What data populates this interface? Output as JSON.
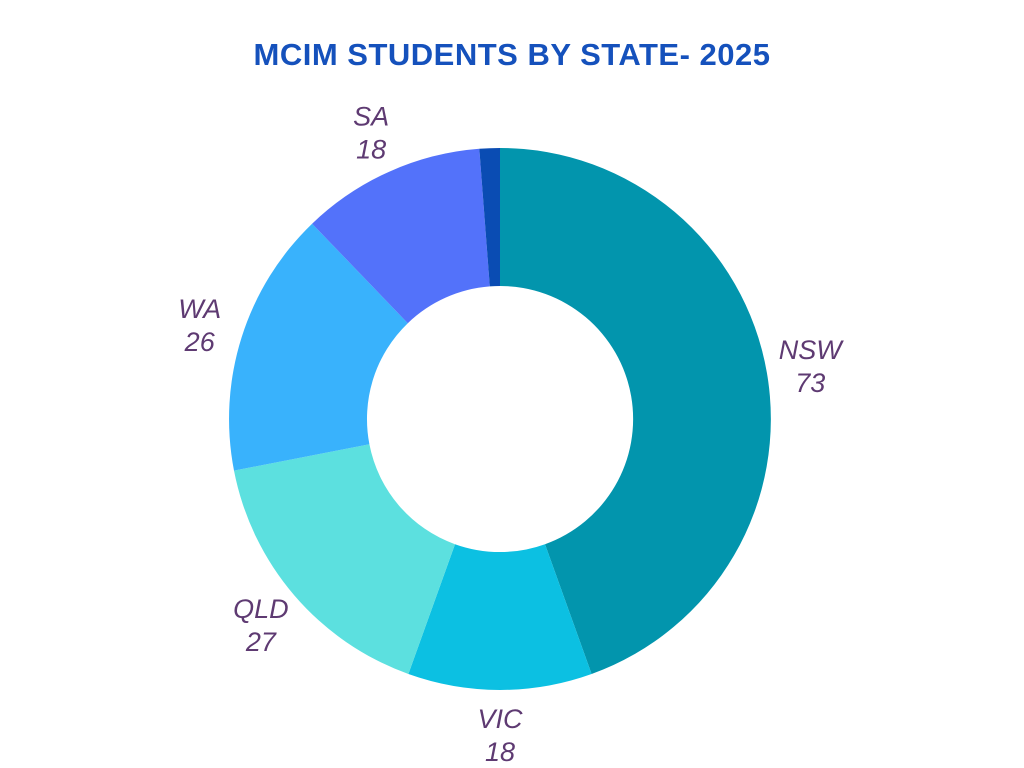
{
  "page": {
    "background_color": "#FFFFFF"
  },
  "title": {
    "text": "MCIM STUDENTS BY STATE- 2025",
    "color": "#1551BC"
  },
  "chart_data": {
    "type": "pie",
    "subtype": "donut",
    "title": "MCIM STUDENTS BY STATE- 2025",
    "hole_ratio": 0.49,
    "start_angle_deg": 0,
    "direction": "clockwise",
    "legend": "none",
    "total": 164,
    "segments": [
      {
        "label": "NSW",
        "value": 73,
        "color": "#0295AD"
      },
      {
        "label": "VIC",
        "value": 18,
        "color": "#0CC0E2"
      },
      {
        "label": "QLD",
        "value": 27,
        "color": "#5CE0DF"
      },
      {
        "label": "WA",
        "value": 26,
        "color": "#39B2FC"
      },
      {
        "label": "SA",
        "value": 18,
        "color": "#5372FA"
      },
      {
        "label": "",
        "value": 2,
        "color": "#0A4CB3"
      }
    ],
    "label_style": {
      "color": "#5E3A72",
      "italic": true
    }
  }
}
